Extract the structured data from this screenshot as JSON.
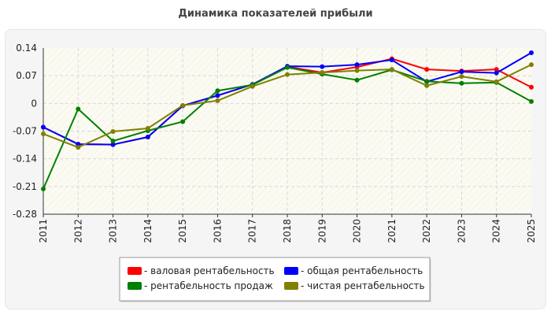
{
  "chart_data": {
    "type": "line",
    "title": "Динамика показателей прибыли",
    "x": [
      "2011",
      "2012",
      "2013",
      "2014",
      "2015",
      "2016",
      "2017",
      "2018",
      "2019",
      "2020",
      "2021",
      "2022",
      "2023",
      "2024",
      "2025"
    ],
    "yticks": [
      "0.14",
      "0.07",
      "0",
      "-0.07",
      "-0.14",
      "-0.21",
      "-0.28"
    ],
    "ylim": [
      -0.28,
      0.14
    ],
    "grid": true,
    "legend_position": "bottom-center",
    "series": [
      {
        "name": "- валовая рентабельность",
        "color": "#ff0000",
        "values": [
          -0.06,
          -0.103,
          -0.104,
          -0.085,
          -0.006,
          0.02,
          0.048,
          0.093,
          0.078,
          0.092,
          0.113,
          0.086,
          0.082,
          0.086,
          0.041
        ]
      },
      {
        "name": "- общая рентабельность",
        "color": "#0000ff",
        "values": [
          -0.06,
          -0.103,
          -0.104,
          -0.085,
          -0.006,
          0.02,
          0.048,
          0.094,
          0.093,
          0.098,
          0.11,
          0.055,
          0.08,
          0.077,
          0.128
        ]
      },
      {
        "name": "- рентабельность продаж",
        "color": "#008000",
        "values": [
          -0.216,
          -0.014,
          -0.095,
          -0.069,
          -0.046,
          0.032,
          0.047,
          0.091,
          0.074,
          0.059,
          0.085,
          0.056,
          0.051,
          0.053,
          0.005
        ]
      },
      {
        "name": "- чистая рентабельность",
        "color": "#808000",
        "values": [
          -0.077,
          -0.111,
          -0.071,
          -0.063,
          -0.005,
          0.007,
          0.043,
          0.073,
          0.078,
          0.083,
          0.086,
          0.045,
          0.068,
          0.055,
          0.098
        ]
      }
    ]
  }
}
